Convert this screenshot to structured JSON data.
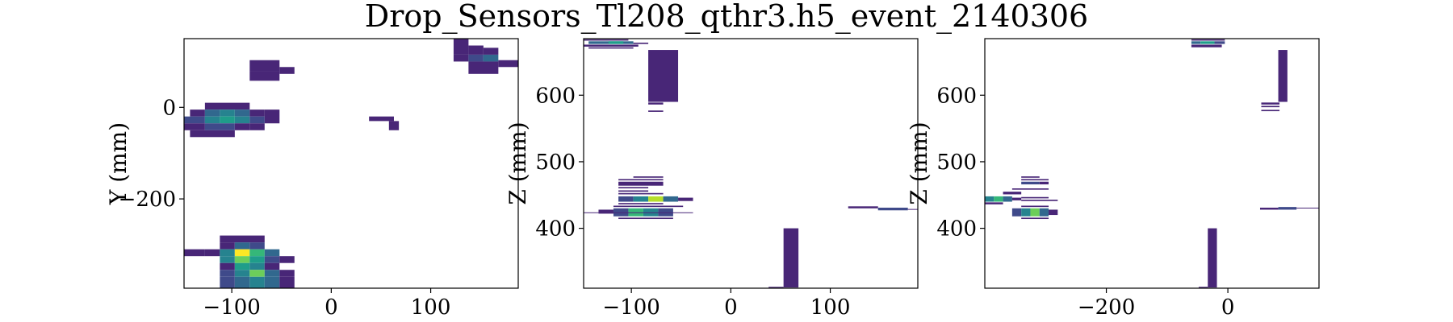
{
  "title": "Drop_Sensors_Tl208_qthr3.h5_event_2140306",
  "colors": {
    "viridis": [
      "#440154",
      "#482677",
      "#3f4a8a",
      "#31688e",
      "#26838f",
      "#1f9d8a",
      "#35b779",
      "#6cce5a",
      "#b6de2b",
      "#fde725"
    ]
  },
  "chart_data": [
    {
      "type": "heatmap",
      "xlabel": "",
      "ylabel": "Y (mm)",
      "xlim": [
        -148,
        188
      ],
      "ylim": [
        -395,
        150
      ],
      "xticks": [
        -100,
        0,
        100
      ],
      "xtick_labels": [
        "−100",
        "0",
        "100"
      ],
      "yticks": [
        0,
        -200
      ],
      "ytick_labels": [
        "0",
        "−200"
      ],
      "cells": [
        {
          "x0": 123,
          "x1": 138,
          "y0": 115,
          "y1": 150,
          "v": 0.1
        },
        {
          "x0": 138,
          "x1": 153,
          "y0": 115,
          "y1": 135,
          "v": 0.1
        },
        {
          "x0": 123,
          "x1": 138,
          "y0": 100,
          "y1": 115,
          "v": 0.1
        },
        {
          "x0": 138,
          "x1": 153,
          "y0": 100,
          "y1": 115,
          "v": 0.25
        },
        {
          "x0": 153,
          "x1": 168,
          "y0": 100,
          "y1": 115,
          "v": 0.3
        },
        {
          "x0": 153,
          "x1": 168,
          "y0": 115,
          "y1": 130,
          "v": 0.1
        },
        {
          "x0": 168,
          "x1": 188,
          "y0": 88,
          "y1": 103,
          "v": 0.1
        },
        {
          "x0": 138,
          "x1": 168,
          "y0": 73,
          "y1": 100,
          "v": 0.1
        },
        {
          "x0": -82,
          "x1": -52,
          "y0": 78,
          "y1": 103,
          "v": 0.1
        },
        {
          "x0": -52,
          "x1": -37,
          "y0": 73,
          "y1": 88,
          "v": 0.1
        },
        {
          "x0": -82,
          "x1": -52,
          "y0": 58,
          "y1": 78,
          "v": 0.1
        },
        {
          "x0": -127,
          "x1": -82,
          "y0": -5,
          "y1": 10,
          "v": 0.1
        },
        {
          "x0": -142,
          "x1": -127,
          "y0": -20,
          "y1": -5,
          "v": 0.1
        },
        {
          "x0": -127,
          "x1": -112,
          "y0": -20,
          "y1": -5,
          "v": 0.3
        },
        {
          "x0": -112,
          "x1": -97,
          "y0": -20,
          "y1": -5,
          "v": 0.4
        },
        {
          "x0": -97,
          "x1": -82,
          "y0": -20,
          "y1": -5,
          "v": 0.3
        },
        {
          "x0": -82,
          "x1": -67,
          "y0": -20,
          "y1": -5,
          "v": 0.1
        },
        {
          "x0": -148,
          "x1": -127,
          "y0": -35,
          "y1": -20,
          "v": 0.25
        },
        {
          "x0": -127,
          "x1": -112,
          "y0": -35,
          "y1": -20,
          "v": 0.45
        },
        {
          "x0": -112,
          "x1": -97,
          "y0": -35,
          "y1": -20,
          "v": 0.55
        },
        {
          "x0": -97,
          "x1": -82,
          "y0": -35,
          "y1": -20,
          "v": 0.4
        },
        {
          "x0": -82,
          "x1": -67,
          "y0": -35,
          "y1": -20,
          "v": 0.25
        },
        {
          "x0": -67,
          "x1": -52,
          "y0": -35,
          "y1": -5,
          "v": 0.1
        },
        {
          "x0": -148,
          "x1": -127,
          "y0": -50,
          "y1": -35,
          "v": 0.1
        },
        {
          "x0": -127,
          "x1": -97,
          "y0": -50,
          "y1": -35,
          "v": 0.25
        },
        {
          "x0": -97,
          "x1": -82,
          "y0": -50,
          "y1": -35,
          "v": 0.15
        },
        {
          "x0": -82,
          "x1": -67,
          "y0": -50,
          "y1": -35,
          "v": 0.1
        },
        {
          "x0": -142,
          "x1": -97,
          "y0": -65,
          "y1": -50,
          "v": 0.1
        },
        {
          "x0": 38,
          "x1": 63,
          "y0": -30,
          "y1": -20,
          "v": 0.1
        },
        {
          "x0": 58,
          "x1": 68,
          "y0": -50,
          "y1": -30,
          "v": 0.1
        },
        {
          "x0": -112,
          "x1": -67,
          "y0": -295,
          "y1": -280,
          "v": 0.1
        },
        {
          "x0": -112,
          "x1": -97,
          "y0": -310,
          "y1": -295,
          "v": 0.15
        },
        {
          "x0": -97,
          "x1": -82,
          "y0": -310,
          "y1": -295,
          "v": 0.35
        },
        {
          "x0": -82,
          "x1": -67,
          "y0": -310,
          "y1": -295,
          "v": 0.2
        },
        {
          "x0": -148,
          "x1": -127,
          "y0": -325,
          "y1": -310,
          "v": 0.1
        },
        {
          "x0": -127,
          "x1": -112,
          "y0": -325,
          "y1": -310,
          "v": 0.15
        },
        {
          "x0": -112,
          "x1": -97,
          "y0": -325,
          "y1": -310,
          "v": 0.45
        },
        {
          "x0": -97,
          "x1": -82,
          "y0": -325,
          "y1": -310,
          "v": 0.95
        },
        {
          "x0": -82,
          "x1": -67,
          "y0": -325,
          "y1": -310,
          "v": 0.7
        },
        {
          "x0": -67,
          "x1": -52,
          "y0": -325,
          "y1": -310,
          "v": 0.3
        },
        {
          "x0": -112,
          "x1": -97,
          "y0": -340,
          "y1": -325,
          "v": 0.4
        },
        {
          "x0": -97,
          "x1": -82,
          "y0": -340,
          "y1": -325,
          "v": 0.8
        },
        {
          "x0": -82,
          "x1": -67,
          "y0": -340,
          "y1": -325,
          "v": 0.6
        },
        {
          "x0": -67,
          "x1": -52,
          "y0": -340,
          "y1": -325,
          "v": 0.2
        },
        {
          "x0": -52,
          "x1": -37,
          "y0": -340,
          "y1": -325,
          "v": 0.1
        },
        {
          "x0": -112,
          "x1": -97,
          "y0": -355,
          "y1": -340,
          "v": 0.15
        },
        {
          "x0": -97,
          "x1": -82,
          "y0": -355,
          "y1": -340,
          "v": 0.5
        },
        {
          "x0": -82,
          "x1": -67,
          "y0": -355,
          "y1": -340,
          "v": 0.45
        },
        {
          "x0": -67,
          "x1": -52,
          "y0": -355,
          "y1": -340,
          "v": 0.15
        },
        {
          "x0": -112,
          "x1": -97,
          "y0": -370,
          "y1": -355,
          "v": 0.25
        },
        {
          "x0": -97,
          "x1": -82,
          "y0": -370,
          "y1": -355,
          "v": 0.45
        },
        {
          "x0": -82,
          "x1": -67,
          "y0": -370,
          "y1": -355,
          "v": 0.75
        },
        {
          "x0": -67,
          "x1": -52,
          "y0": -370,
          "y1": -355,
          "v": 0.35
        },
        {
          "x0": -52,
          "x1": -37,
          "y0": -370,
          "y1": -355,
          "v": 0.15
        },
        {
          "x0": -112,
          "x1": -97,
          "y0": -395,
          "y1": -370,
          "v": 0.2
        },
        {
          "x0": -97,
          "x1": -82,
          "y0": -395,
          "y1": -370,
          "v": 0.35
        },
        {
          "x0": -82,
          "x1": -67,
          "y0": -395,
          "y1": -370,
          "v": 0.45
        },
        {
          "x0": -67,
          "x1": -52,
          "y0": -395,
          "y1": -370,
          "v": 0.3
        },
        {
          "x0": -52,
          "x1": -37,
          "y0": -395,
          "y1": -370,
          "v": 0.15
        }
      ]
    },
    {
      "type": "heatmap",
      "xlabel": "",
      "ylabel": "Z (mm)",
      "xlim": [
        -148,
        188
      ],
      "ylim": [
        310,
        685
      ],
      "xticks": [
        -100,
        0,
        100
      ],
      "xtick_labels": [
        "−100",
        "0",
        "100"
      ],
      "yticks": [
        400,
        500,
        600
      ],
      "ytick_labels": [
        "400",
        "500",
        "600"
      ],
      "cells": [
        {
          "x0": -148,
          "x1": -103,
          "y0": 682,
          "y1": 684,
          "v": 0.1
        },
        {
          "x0": -143,
          "x1": -98,
          "y0": 677,
          "y1": 681,
          "v": 0.35
        },
        {
          "x0": -123,
          "x1": -108,
          "y0": 677,
          "y1": 681,
          "v": 0.55
        },
        {
          "x0": -98,
          "x1": -83,
          "y0": 677,
          "y1": 679,
          "v": 0.1
        },
        {
          "x0": -148,
          "x1": -93,
          "y0": 673,
          "y1": 676,
          "v": 0.15
        },
        {
          "x0": -143,
          "x1": -98,
          "y0": 670,
          "y1": 672,
          "v": 0.1
        },
        {
          "x0": -83,
          "x1": -53,
          "y0": 590,
          "y1": 668,
          "v": 0.1
        },
        {
          "x0": -83,
          "x1": -68,
          "y0": 586,
          "y1": 589,
          "v": 0.1
        },
        {
          "x0": -83,
          "x1": -68,
          "y0": 575,
          "y1": 577,
          "v": 0.1
        },
        {
          "x0": -98,
          "x1": -68,
          "y0": 476,
          "y1": 478,
          "v": 0.1
        },
        {
          "x0": -113,
          "x1": -68,
          "y0": 472,
          "y1": 474,
          "v": 0.1
        },
        {
          "x0": -113,
          "x1": -68,
          "y0": 464,
          "y1": 470,
          "v": 0.15
        },
        {
          "x0": -113,
          "x1": -83,
          "y0": 460,
          "y1": 462,
          "v": 0.1
        },
        {
          "x0": -113,
          "x1": -83,
          "y0": 455,
          "y1": 457,
          "v": 0.1
        },
        {
          "x0": -113,
          "x1": -68,
          "y0": 451,
          "y1": 453,
          "v": 0.1
        },
        {
          "x0": -113,
          "x1": -98,
          "y0": 440,
          "y1": 448,
          "v": 0.2
        },
        {
          "x0": -98,
          "x1": -83,
          "y0": 440,
          "y1": 448,
          "v": 0.45
        },
        {
          "x0": -83,
          "x1": -68,
          "y0": 440,
          "y1": 448,
          "v": 0.85
        },
        {
          "x0": -68,
          "x1": -53,
          "y0": 440,
          "y1": 448,
          "v": 0.3
        },
        {
          "x0": -53,
          "x1": -38,
          "y0": 441,
          "y1": 446,
          "v": 0.1
        },
        {
          "x0": -113,
          "x1": -68,
          "y0": 436,
          "y1": 438,
          "v": 0.1
        },
        {
          "x0": -118,
          "x1": -48,
          "y0": 432,
          "y1": 434,
          "v": 0.1
        },
        {
          "x0": -133,
          "x1": -118,
          "y0": 422,
          "y1": 428,
          "v": 0.15
        },
        {
          "x0": -118,
          "x1": -103,
          "y0": 418,
          "y1": 430,
          "v": 0.25
        },
        {
          "x0": -103,
          "x1": -88,
          "y0": 418,
          "y1": 430,
          "v": 0.7
        },
        {
          "x0": -88,
          "x1": -73,
          "y0": 418,
          "y1": 430,
          "v": 0.45
        },
        {
          "x0": -73,
          "x1": -58,
          "y0": 418,
          "y1": 430,
          "v": 0.2
        },
        {
          "x0": -148,
          "x1": -38,
          "y0": 423,
          "y1": 424,
          "v": 0.1
        },
        {
          "x0": -113,
          "x1": -58,
          "y0": 414,
          "y1": 416,
          "v": 0.1
        },
        {
          "x0": 118,
          "x1": 148,
          "y0": 430,
          "y1": 433,
          "v": 0.15
        },
        {
          "x0": 148,
          "x1": 178,
          "y0": 427,
          "y1": 431,
          "v": 0.2
        },
        {
          "x0": 178,
          "x1": 188,
          "y0": 428,
          "y1": 429,
          "v": 0.1
        },
        {
          "x0": 53,
          "x1": 68,
          "y0": 311,
          "y1": 400,
          "v": 0.1
        },
        {
          "x0": 38,
          "x1": 53,
          "y0": 310,
          "y1": 312,
          "v": 0.1
        }
      ]
    },
    {
      "type": "heatmap",
      "xlabel": "",
      "ylabel": "Z (mm)",
      "xlim": [
        -400,
        150
      ],
      "ylim": [
        310,
        685
      ],
      "xticks": [
        -200,
        0
      ],
      "xtick_labels": [
        "−200",
        "0"
      ],
      "yticks": [
        400,
        500,
        600
      ],
      "ytick_labels": [
        "400",
        "500",
        "600"
      ],
      "cells": [
        {
          "x0": -60,
          "x1": -5,
          "y0": 682,
          "y1": 684,
          "v": 0.1
        },
        {
          "x0": -60,
          "x1": -45,
          "y0": 677,
          "y1": 681,
          "v": 0.3
        },
        {
          "x0": -45,
          "x1": -22,
          "y0": 677,
          "y1": 681,
          "v": 0.5
        },
        {
          "x0": -22,
          "x1": -5,
          "y0": 677,
          "y1": 681,
          "v": 0.2
        },
        {
          "x0": -60,
          "x1": -10,
          "y0": 672,
          "y1": 676,
          "v": 0.15
        },
        {
          "x0": 83,
          "x1": 98,
          "y0": 590,
          "y1": 668,
          "v": 0.1
        },
        {
          "x0": 55,
          "x1": 85,
          "y0": 586,
          "y1": 589,
          "v": 0.1
        },
        {
          "x0": 55,
          "x1": 85,
          "y0": 582,
          "y1": 584,
          "v": 0.1
        },
        {
          "x0": 55,
          "x1": 85,
          "y0": 576,
          "y1": 578,
          "v": 0.1
        },
        {
          "x0": -340,
          "x1": -310,
          "y0": 476,
          "y1": 478,
          "v": 0.1
        },
        {
          "x0": -340,
          "x1": -295,
          "y0": 472,
          "y1": 474,
          "v": 0.1
        },
        {
          "x0": -340,
          "x1": -310,
          "y0": 466,
          "y1": 470,
          "v": 0.25
        },
        {
          "x0": -310,
          "x1": -295,
          "y0": 466,
          "y1": 470,
          "v": 0.1
        },
        {
          "x0": -355,
          "x1": -295,
          "y0": 458,
          "y1": 460,
          "v": 0.1
        },
        {
          "x0": -370,
          "x1": -340,
          "y0": 451,
          "y1": 455,
          "v": 0.1
        },
        {
          "x0": -400,
          "x1": -385,
          "y0": 440,
          "y1": 448,
          "v": 0.4
        },
        {
          "x0": -385,
          "x1": -370,
          "y0": 440,
          "y1": 448,
          "v": 0.7
        },
        {
          "x0": -370,
          "x1": -355,
          "y0": 440,
          "y1": 448,
          "v": 0.3
        },
        {
          "x0": -355,
          "x1": -340,
          "y0": 442,
          "y1": 446,
          "v": 0.15
        },
        {
          "x0": -340,
          "x1": -295,
          "y0": 445,
          "y1": 447,
          "v": 0.1
        },
        {
          "x0": -340,
          "x1": -280,
          "y0": 441,
          "y1": 443,
          "v": 0.1
        },
        {
          "x0": -400,
          "x1": -370,
          "y0": 436,
          "y1": 439,
          "v": 0.15
        },
        {
          "x0": -355,
          "x1": -340,
          "y0": 418,
          "y1": 430,
          "v": 0.2
        },
        {
          "x0": -340,
          "x1": -325,
          "y0": 418,
          "y1": 430,
          "v": 0.45
        },
        {
          "x0": -325,
          "x1": -310,
          "y0": 418,
          "y1": 430,
          "v": 0.75
        },
        {
          "x0": -310,
          "x1": -295,
          "y0": 418,
          "y1": 430,
          "v": 0.35
        },
        {
          "x0": -295,
          "x1": -280,
          "y0": 420,
          "y1": 428,
          "v": 0.15
        },
        {
          "x0": -340,
          "x1": -295,
          "y0": 432,
          "y1": 434,
          "v": 0.1
        },
        {
          "x0": -340,
          "x1": -295,
          "y0": 414,
          "y1": 416,
          "v": 0.1
        },
        {
          "x0": 53,
          "x1": 83,
          "y0": 428,
          "y1": 431,
          "v": 0.15
        },
        {
          "x0": 83,
          "x1": 113,
          "y0": 428,
          "y1": 432,
          "v": 0.2
        },
        {
          "x0": 113,
          "x1": 150,
          "y0": 430,
          "y1": 431,
          "v": 0.1
        },
        {
          "x0": -33,
          "x1": -18,
          "y0": 311,
          "y1": 400,
          "v": 0.1
        },
        {
          "x0": -48,
          "x1": -33,
          "y0": 310,
          "y1": 312,
          "v": 0.1
        }
      ]
    }
  ]
}
